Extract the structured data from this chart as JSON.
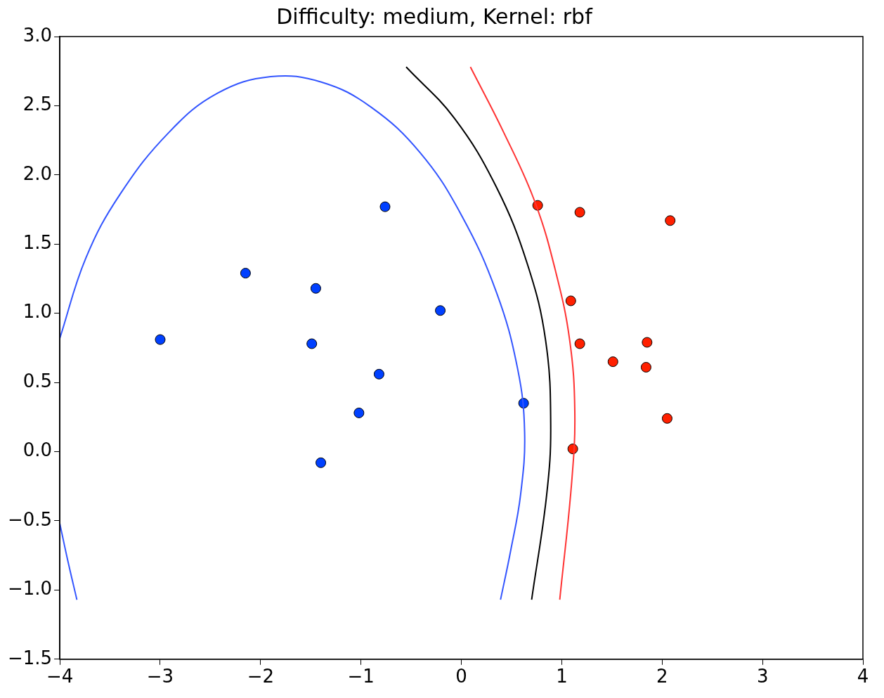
{
  "chart_data": {
    "type": "scatter",
    "title": "Difficulty: medium, Kernel: rbf",
    "marker": "circle",
    "grid": false,
    "legend": false,
    "xlim": [
      -4,
      4
    ],
    "xticks": [
      {
        "value": -4,
        "label": "−4"
      },
      {
        "value": -3,
        "label": "−3"
      },
      {
        "value": -2,
        "label": "−2"
      },
      {
        "value": -1,
        "label": "−1"
      },
      0,
      1,
      2,
      3,
      4
    ],
    "ylim": [
      -1.5,
      3
    ],
    "yticks": [
      {
        "value": -1.5,
        "label": "−1.5"
      },
      {
        "value": -1,
        "label": "−1.0"
      },
      {
        "value": -0.5,
        "label": "−0.5"
      },
      {
        "value": 0,
        "label": "0.0"
      },
      0.5,
      {
        "value": 1,
        "label": "1.0"
      },
      1.5,
      {
        "value": 2,
        "label": "2.0"
      },
      2.5,
      {
        "value": 3,
        "label": "3.0"
      }
    ],
    "series": [
      {
        "type": "line",
        "color": "#3355ff",
        "marker": "none",
        "x": [
          -4,
          -3.74,
          -3.4,
          -2.91,
          -2.43,
          -1.9,
          -1.39,
          -0.9,
          -0.41,
          0,
          0.35,
          0.56,
          0.63,
          0.59,
          0.49,
          0.39,
          null,
          -4,
          -3.92,
          -3.83
        ],
        "values": [
          0.82,
          1.4,
          1.86,
          2.31,
          2.59,
          2.71,
          2.67,
          2.49,
          2.16,
          1.71,
          1.15,
          0.6,
          0.14,
          -0.31,
          -0.72,
          -1.07,
          null,
          -0.52,
          -0.79,
          -1.07
        ]
      },
      {
        "type": "line",
        "color": "#000000",
        "marker": "none",
        "x": [
          -0.55,
          -0.07,
          0.35,
          0.66,
          0.84,
          0.89,
          0.85,
          0.7
        ],
        "values": [
          2.78,
          2.41,
          1.91,
          1.35,
          0.8,
          0.19,
          -0.31,
          -1.07
        ]
      },
      {
        "type": "line",
        "color": "#ff3333",
        "marker": "none",
        "x": [
          0.09,
          0.42,
          0.73,
          0.94,
          1.08,
          1.13,
          1.1,
          0.98
        ],
        "values": [
          2.78,
          2.31,
          1.81,
          1.3,
          0.8,
          0.29,
          -0.21,
          -1.07
        ]
      },
      {
        "type": "scatter",
        "color": "#0040ff",
        "x": [
          -3,
          -2.15,
          -1.45,
          -1.49,
          -0.76,
          -0.21,
          -0.82,
          -1.02,
          -1.4,
          0.62
        ],
        "values": [
          0.81,
          1.29,
          1.18,
          0.78,
          1.77,
          1.02,
          0.56,
          0.28,
          -0.08,
          0.35
        ]
      },
      {
        "type": "scatter",
        "color": "#ff2000",
        "x": [
          0.76,
          1.18,
          2.08,
          1.09,
          1.18,
          1.51,
          1.85,
          1.84,
          2.05,
          1.11
        ],
        "values": [
          1.78,
          1.73,
          1.67,
          1.09,
          0.78,
          0.65,
          0.79,
          0.61,
          0.24,
          0.02
        ]
      }
    ]
  }
}
